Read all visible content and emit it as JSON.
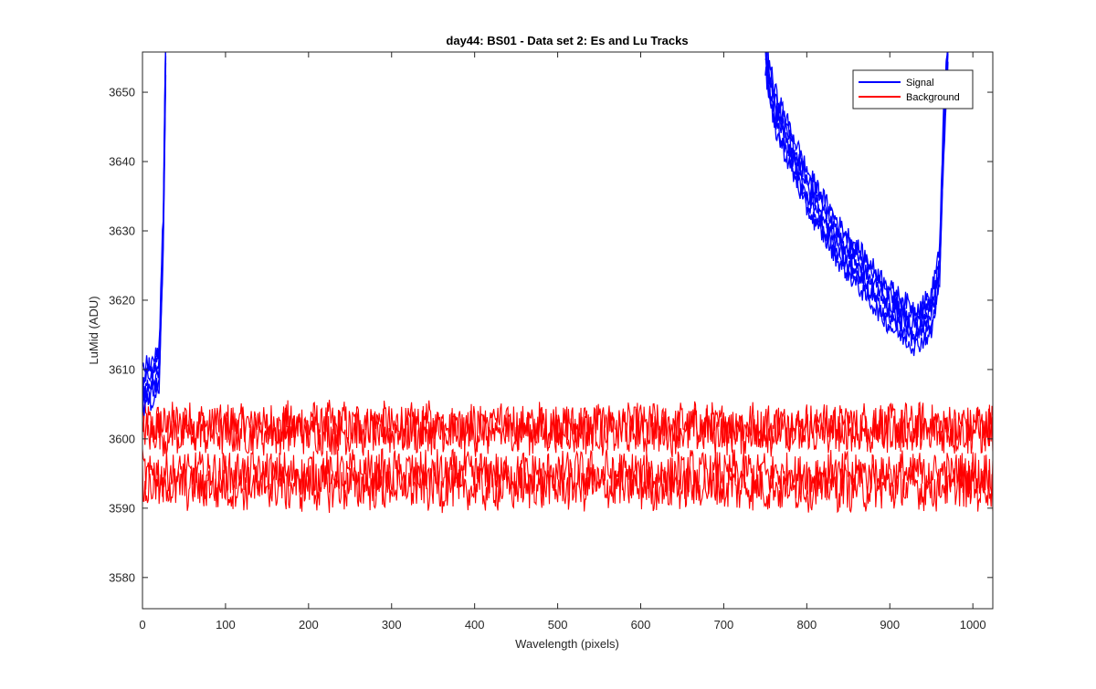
{
  "chart_data": {
    "type": "line",
    "title": "day44: BS01 - Data set 2: Es and Lu Tracks",
    "xlabel": "Wavelength (pixels)",
    "ylabel": "LuMid (ADU)",
    "xlim": [
      0,
      1024
    ],
    "ylim": [
      3575.5,
      3655.8
    ],
    "x_ticks": [
      0,
      100,
      200,
      300,
      400,
      500,
      600,
      700,
      800,
      900,
      1000
    ],
    "y_ticks": [
      3580,
      3590,
      3600,
      3610,
      3620,
      3630,
      3640,
      3650
    ],
    "grid": false,
    "legend_position": "top-right",
    "legend": [
      {
        "name": "Signal",
        "color": "#0000ff"
      },
      {
        "name": "Background",
        "color": "#ff0000"
      }
    ],
    "series": [
      {
        "name": "Signal",
        "color": "#0000ff",
        "count": 6,
        "segments": [
          {
            "x": [
              0,
              5,
              10,
              15,
              20,
              25,
              28
            ],
            "y": [
              3607,
              3608,
              3608,
              3609,
              3610,
              3630,
              3656
            ]
          },
          {
            "x": [
              750,
              760,
              780,
              800,
              820,
              840,
              860,
              880,
              900,
              920,
              930,
              940,
              950,
              960,
              965,
              970
            ],
            "y": [
              3656,
              3648,
              3642,
              3636,
              3632,
              3628,
              3625,
              3622,
              3619,
              3617,
              3616,
              3617,
              3618,
              3625,
              3645,
              3656
            ]
          }
        ]
      },
      {
        "name": "Background",
        "color": "#ff0000",
        "count": 4,
        "levels": [
          3602,
          3601,
          3595,
          3593
        ],
        "x": [
          0,
          1024
        ]
      }
    ]
  }
}
